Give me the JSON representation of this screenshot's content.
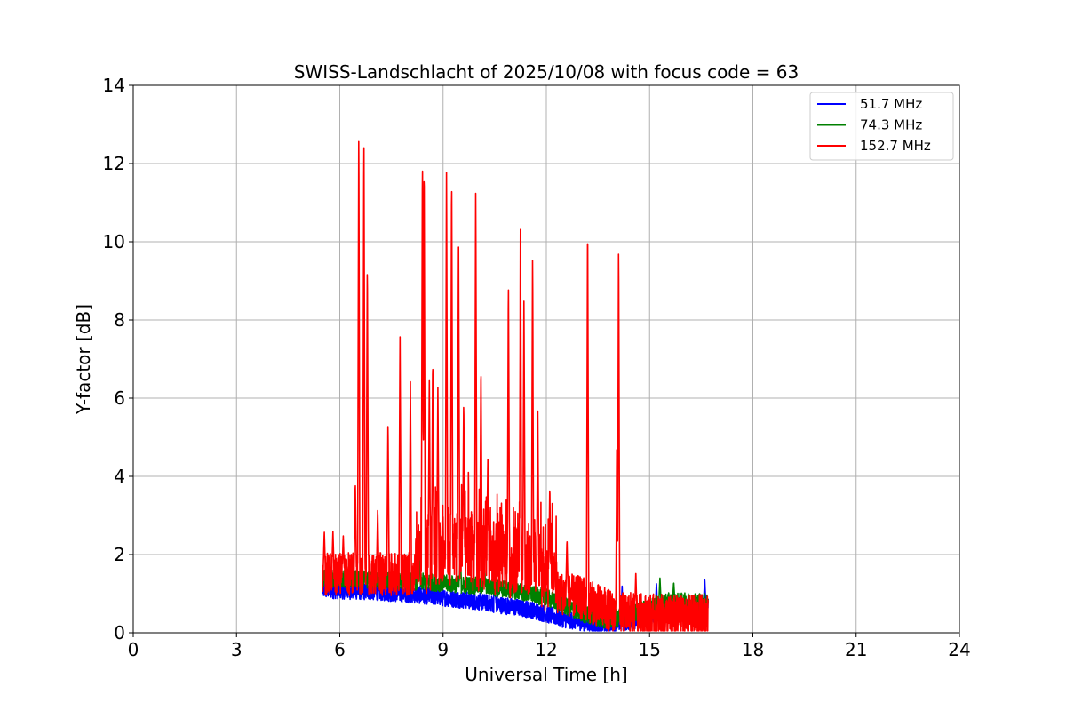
{
  "chart_data": {
    "type": "line",
    "title": "SWISS-Landschlacht of 2025/10/08 with focus code = 63",
    "xlabel": "Universal Time [h]",
    "ylabel": "Y-factor [dB]",
    "xlim": [
      0,
      24
    ],
    "ylim": [
      0,
      14
    ],
    "xticks": [
      0,
      3,
      6,
      9,
      12,
      15,
      18,
      21,
      24
    ],
    "yticks": [
      0,
      2,
      4,
      6,
      8,
      10,
      12,
      14
    ],
    "grid": true,
    "legend_position": "top-right",
    "data_range_x": [
      5.5,
      16.7
    ],
    "series": [
      {
        "name": "51.7 MHz",
        "color": "#0000ff",
        "baseline": [
          [
            5.5,
            1.1
          ],
          [
            7.0,
            1.05
          ],
          [
            8.5,
            0.95
          ],
          [
            10.0,
            0.8
          ],
          [
            11.5,
            0.6
          ],
          [
            12.5,
            0.35
          ],
          [
            13.5,
            0.2
          ],
          [
            14.5,
            0.3
          ],
          [
            15.5,
            0.55
          ],
          [
            16.7,
            0.7
          ]
        ],
        "spikes": [
          [
            10.5,
            2.2
          ],
          [
            14.2,
            1.2
          ],
          [
            15.2,
            1.3
          ],
          [
            16.6,
            1.4
          ]
        ]
      },
      {
        "name": "74.3 MHz",
        "color": "#008000",
        "baseline": [
          [
            5.5,
            1.4
          ],
          [
            7.0,
            1.35
          ],
          [
            8.5,
            1.3
          ],
          [
            10.0,
            1.2
          ],
          [
            11.0,
            1.1
          ],
          [
            12.0,
            0.9
          ],
          [
            13.0,
            0.5
          ],
          [
            13.8,
            0.3
          ],
          [
            14.5,
            0.5
          ],
          [
            15.5,
            0.8
          ],
          [
            16.7,
            0.8
          ]
        ],
        "spikes": [
          [
            8.3,
            2.6
          ],
          [
            9.5,
            2.0
          ],
          [
            10.2,
            1.9
          ],
          [
            15.3,
            1.4
          ],
          [
            15.7,
            1.3
          ]
        ]
      },
      {
        "name": "152.7 MHz",
        "color": "#ff0000",
        "baseline": [
          [
            5.5,
            1.5
          ],
          [
            7.0,
            1.5
          ],
          [
            8.5,
            1.5
          ],
          [
            10.0,
            1.6
          ],
          [
            11.0,
            1.4
          ],
          [
            12.0,
            1.1
          ],
          [
            13.0,
            0.9
          ],
          [
            14.0,
            0.5
          ],
          [
            15.0,
            0.45
          ],
          [
            16.0,
            0.4
          ],
          [
            16.7,
            0.45
          ]
        ],
        "spikes": [
          [
            5.55,
            2.6
          ],
          [
            5.8,
            2.6
          ],
          [
            6.1,
            2.5
          ],
          [
            6.45,
            3.9
          ],
          [
            6.55,
            13.0
          ],
          [
            6.7,
            12.9
          ],
          [
            6.8,
            9.6
          ],
          [
            7.1,
            3.2
          ],
          [
            7.4,
            5.4
          ],
          [
            7.75,
            7.6
          ],
          [
            8.05,
            6.5
          ],
          [
            8.4,
            12.4
          ],
          [
            8.45,
            12.3
          ],
          [
            8.6,
            6.5
          ],
          [
            8.7,
            7.1
          ],
          [
            8.85,
            6.3
          ],
          [
            9.1,
            12.0
          ],
          [
            9.25,
            11.9
          ],
          [
            9.45,
            10.0
          ],
          [
            9.6,
            6.0
          ],
          [
            9.95,
            11.4
          ],
          [
            10.1,
            6.9
          ],
          [
            10.3,
            4.5
          ],
          [
            10.9,
            9.1
          ],
          [
            11.25,
            11.0
          ],
          [
            11.35,
            8.6
          ],
          [
            11.6,
            9.8
          ],
          [
            11.75,
            5.9
          ],
          [
            12.1,
            3.8
          ],
          [
            12.6,
            2.4
          ],
          [
            13.2,
            10.7
          ],
          [
            14.05,
            5.0
          ],
          [
            14.1,
            10.1
          ],
          [
            14.6,
            1.6
          ]
        ]
      }
    ]
  }
}
